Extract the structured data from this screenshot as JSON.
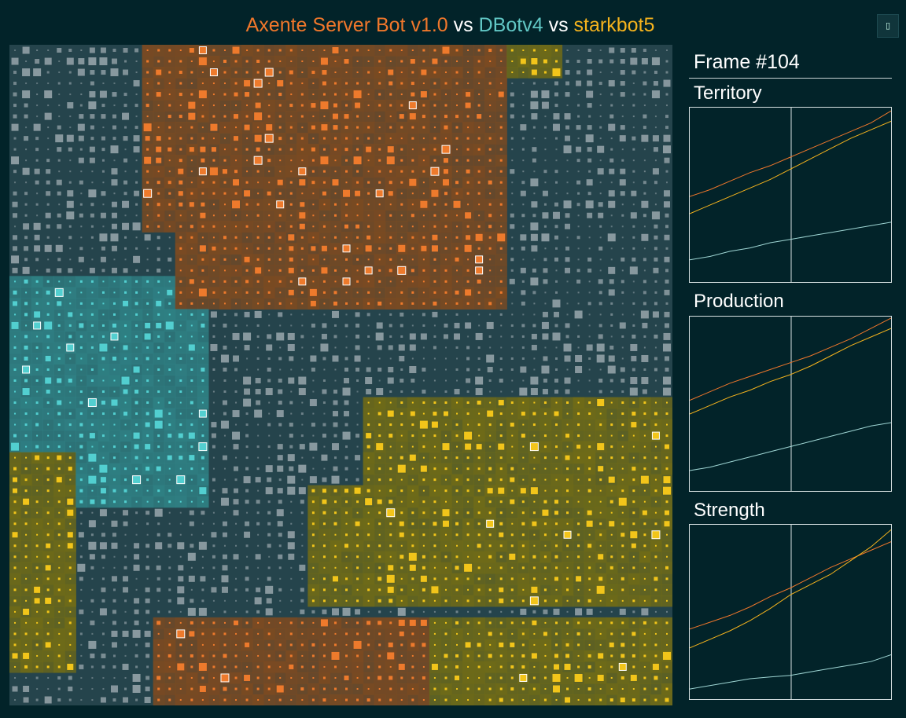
{
  "header": {
    "players": [
      {
        "name": "Axente Server Bot v1.0",
        "color": "#f0772b"
      },
      {
        "name": "DBotv4",
        "color": "#61c7c5"
      },
      {
        "name": "starkbot5",
        "color": "#f5b31d"
      }
    ],
    "separator": "vs",
    "fullscreen_icon": "fullscreen-icon",
    "fullscreen_glyph": "▯"
  },
  "frame": {
    "label": "Frame #104",
    "number": 104
  },
  "colors": {
    "background": "#022329",
    "neutral_site": "#8a9aa0",
    "orange_territory": "#7a4a22",
    "teal_territory": "#2f7f83",
    "yellow_territory": "#6e6a18"
  },
  "charts": [
    {
      "title": "Territory",
      "cursor_frame_fraction": 0.5,
      "series": [
        {
          "player": "Axente Server Bot v1.0",
          "color": "#f0772b",
          "values": [
            0.49,
            0.53,
            0.58,
            0.63,
            0.67,
            0.72,
            0.77,
            0.82,
            0.87,
            0.92,
            0.99
          ]
        },
        {
          "player": "DBotv4",
          "color": "#9fd6d4",
          "values": [
            0.12,
            0.14,
            0.17,
            0.19,
            0.22,
            0.24,
            0.26,
            0.28,
            0.3,
            0.32,
            0.34
          ]
        },
        {
          "player": "starkbot5",
          "color": "#f5b31d",
          "values": [
            0.39,
            0.44,
            0.49,
            0.54,
            0.59,
            0.65,
            0.71,
            0.77,
            0.83,
            0.88,
            0.93
          ]
        }
      ]
    },
    {
      "title": "Production",
      "cursor_frame_fraction": 0.5,
      "series": [
        {
          "player": "Axente Server Bot v1.0",
          "color": "#f0772b",
          "values": [
            0.52,
            0.57,
            0.62,
            0.66,
            0.7,
            0.74,
            0.78,
            0.83,
            0.88,
            0.94,
            1.0
          ]
        },
        {
          "player": "DBotv4",
          "color": "#9fd6d4",
          "values": [
            0.11,
            0.13,
            0.16,
            0.19,
            0.22,
            0.25,
            0.28,
            0.31,
            0.34,
            0.37,
            0.39
          ]
        },
        {
          "player": "starkbot5",
          "color": "#f5b31d",
          "values": [
            0.44,
            0.49,
            0.54,
            0.58,
            0.63,
            0.67,
            0.72,
            0.78,
            0.84,
            0.89,
            0.94
          ]
        }
      ]
    },
    {
      "title": "Strength",
      "cursor_frame_fraction": 0.5,
      "series": [
        {
          "player": "Axente Server Bot v1.0",
          "color": "#f0772b",
          "values": [
            0.4,
            0.44,
            0.48,
            0.53,
            0.59,
            0.64,
            0.7,
            0.76,
            0.81,
            0.86,
            0.91
          ]
        },
        {
          "player": "DBotv4",
          "color": "#9fd6d4",
          "values": [
            0.05,
            0.07,
            0.09,
            0.11,
            0.12,
            0.13,
            0.15,
            0.17,
            0.19,
            0.21,
            0.25
          ]
        },
        {
          "player": "starkbot5",
          "color": "#f5b31d",
          "values": [
            0.29,
            0.34,
            0.39,
            0.45,
            0.52,
            0.6,
            0.66,
            0.72,
            0.8,
            0.88,
            0.98
          ]
        }
      ]
    }
  ]
}
